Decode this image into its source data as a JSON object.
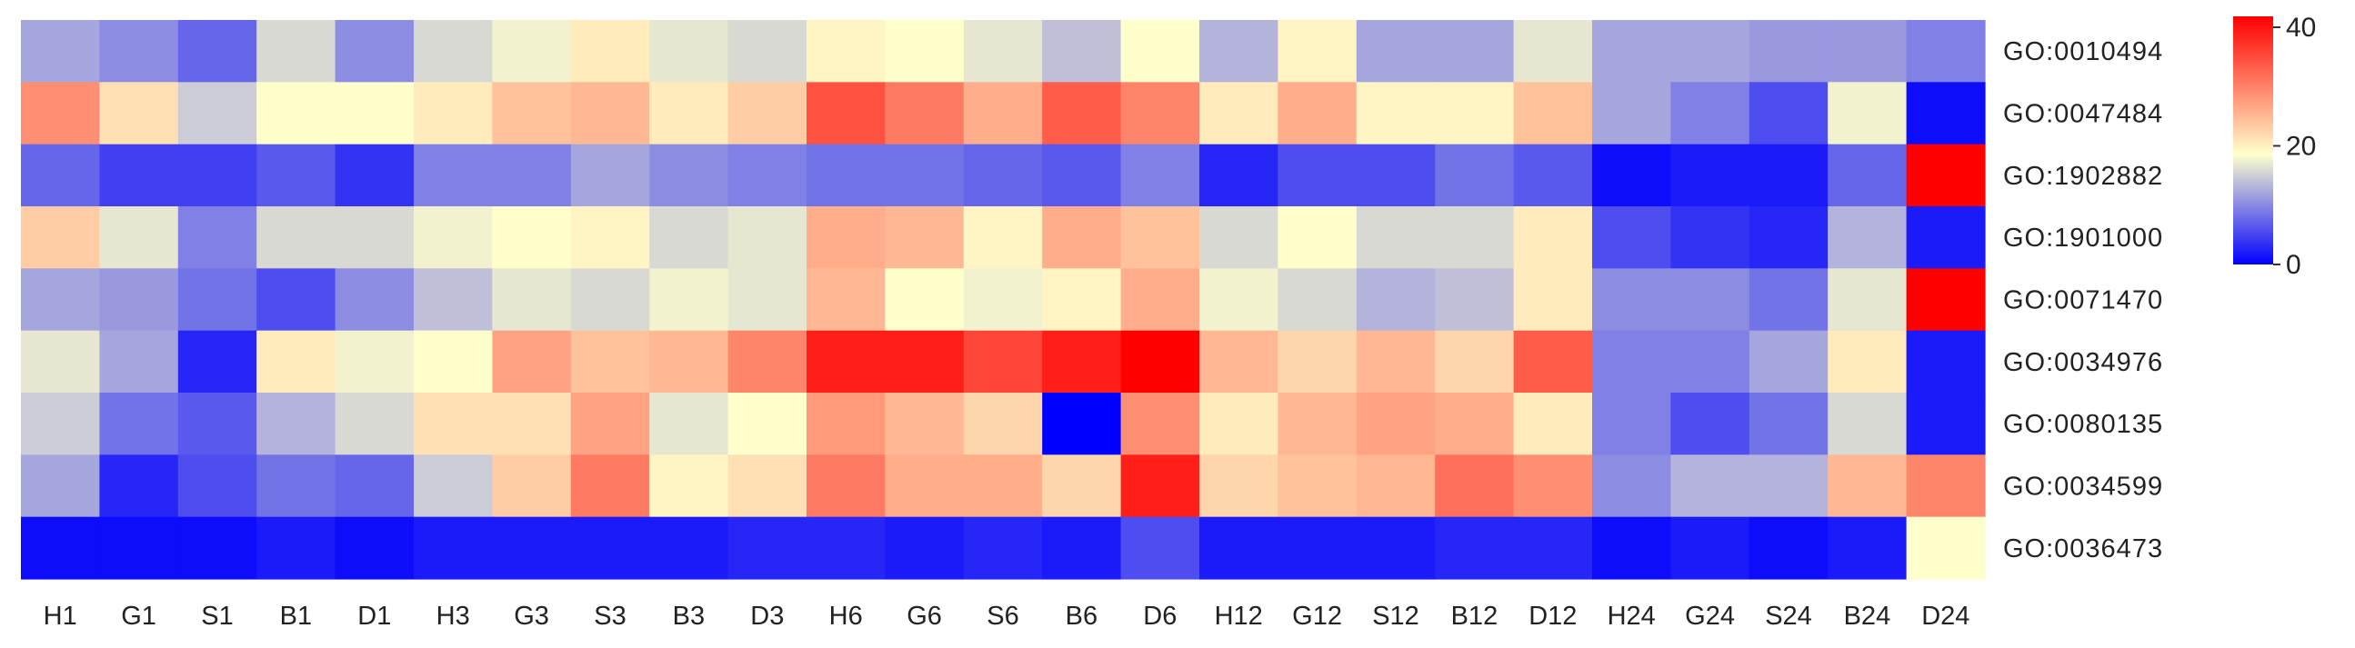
{
  "chart_data": {
    "type": "heatmap",
    "columns": [
      "H1",
      "G1",
      "S1",
      "B1",
      "D1",
      "H3",
      "G3",
      "S3",
      "B3",
      "D3",
      "H6",
      "G6",
      "S6",
      "B6",
      "D6",
      "H12",
      "G12",
      "S12",
      "B12",
      "D12",
      "H24",
      "G24",
      "S24",
      "B24",
      "D24"
    ],
    "rows": [
      "GO:0010494",
      "GO:0047484",
      "GO:1902882",
      "GO:1901000",
      "GO:0071470",
      "GO:0034976",
      "GO:0080135",
      "GO:0034599",
      "GO:0036473"
    ],
    "values": [
      [
        13,
        11,
        8,
        17,
        11,
        17,
        19,
        22,
        18,
        17,
        21,
        20,
        18,
        15,
        20,
        14,
        21,
        13,
        13,
        18,
        13,
        13,
        12,
        12,
        10
      ],
      [
        31,
        23,
        16,
        20,
        20,
        22,
        26,
        27,
        22,
        25,
        37,
        33,
        28,
        36,
        32,
        22,
        28,
        21,
        21,
        26,
        13,
        10,
        6,
        19,
        1
      ],
      [
        8,
        5,
        5,
        7,
        4,
        10,
        10,
        13,
        11,
        10,
        9,
        9,
        8,
        7,
        10,
        3,
        6,
        6,
        9,
        7,
        1,
        2,
        2,
        8,
        45
      ],
      [
        25,
        18,
        10,
        17,
        17,
        19,
        20,
        21,
        17,
        18,
        28,
        27,
        21,
        28,
        26,
        17,
        20,
        17,
        17,
        22,
        6,
        4,
        3,
        14,
        2
      ],
      [
        13,
        12,
        9,
        6,
        11,
        15,
        18,
        17,
        19,
        18,
        27,
        20,
        19,
        21,
        28,
        19,
        17,
        14,
        15,
        22,
        11,
        11,
        9,
        18,
        45
      ],
      [
        18,
        13,
        3,
        22,
        19,
        20,
        29,
        26,
        27,
        32,
        42,
        42,
        38,
        42,
        45,
        27,
        24,
        27,
        24,
        36,
        10,
        10,
        13,
        22,
        2
      ],
      [
        16,
        9,
        7,
        14,
        17,
        23,
        23,
        29,
        18,
        20,
        30,
        27,
        24,
        0,
        31,
        22,
        27,
        29,
        28,
        22,
        10,
        6,
        9,
        17,
        2
      ],
      [
        13,
        3,
        6,
        9,
        8,
        16,
        25,
        33,
        21,
        23,
        33,
        28,
        28,
        24,
        42,
        24,
        26,
        27,
        34,
        31,
        11,
        14,
        14,
        27,
        32
      ],
      [
        1,
        1,
        1,
        2,
        1,
        2,
        2,
        2,
        2,
        3,
        3,
        2,
        3,
        2,
        6,
        2,
        2,
        2,
        3,
        3,
        1,
        2,
        1,
        2,
        20
      ]
    ],
    "colorbar": {
      "min": 0,
      "max": 45,
      "ticks": [
        0,
        20,
        40
      ],
      "tick_labels": [
        "0",
        "20",
        "40"
      ],
      "colors": [
        "#0000ff",
        "#ffffcc",
        "#ff0000"
      ]
    }
  }
}
